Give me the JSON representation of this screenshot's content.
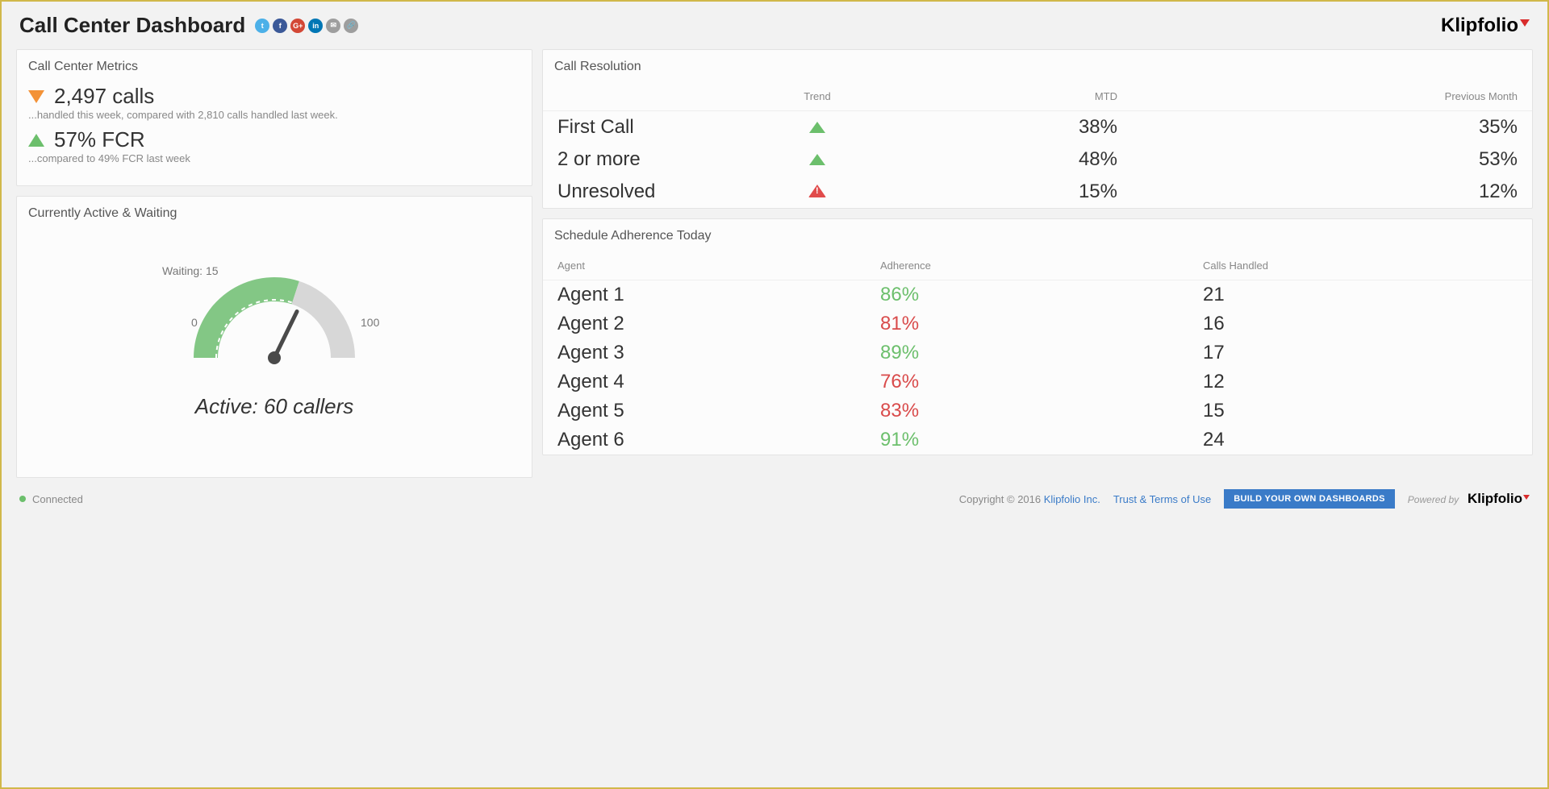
{
  "header": {
    "title": "Call Center Dashboard",
    "brand": "Klipfolio",
    "social_icons": [
      {
        "name": "twitter-icon",
        "bg": "#4cb0e8",
        "glyph": "t"
      },
      {
        "name": "facebook-icon",
        "bg": "#3b5998",
        "glyph": "f"
      },
      {
        "name": "google-plus-icon",
        "bg": "#d34836",
        "glyph": "G+"
      },
      {
        "name": "linkedin-icon",
        "bg": "#0077b5",
        "glyph": "in"
      },
      {
        "name": "email-icon",
        "bg": "#9e9e9e",
        "glyph": "✉"
      },
      {
        "name": "link-icon",
        "bg": "#9e9e9e",
        "glyph": "🔗"
      }
    ]
  },
  "metrics": {
    "panel_title": "Call Center Metrics",
    "calls_value": "2,497 calls",
    "calls_trend": "down",
    "calls_sub": "...handled this week, compared with 2,810 calls handled last week.",
    "fcr_value": "57% FCR",
    "fcr_trend": "up",
    "fcr_sub": "...compared to 49% FCR last week"
  },
  "gauge": {
    "panel_title": "Currently Active & Waiting",
    "waiting_label": "Waiting: 15",
    "min_label": "0",
    "max_label": "100",
    "active_label": "Active: 60 callers",
    "gauge_min": 0,
    "gauge_max": 100,
    "gauge_value": 60,
    "arc_fill_color": "#83c785",
    "arc_bg_color": "#d7d7d7",
    "needle_color": "#4a4a4a"
  },
  "resolution": {
    "panel_title": "Call Resolution",
    "columns": [
      "",
      "Trend",
      "MTD",
      "Previous Month"
    ],
    "rows": [
      {
        "label": "First Call",
        "trend": "up",
        "mtd": "38%",
        "prev": "35%"
      },
      {
        "label": "2 or more",
        "trend": "up",
        "mtd": "48%",
        "prev": "53%"
      },
      {
        "label": "Unresolved",
        "trend": "warn",
        "mtd": "15%",
        "prev": "12%"
      }
    ]
  },
  "adherence": {
    "panel_title": "Schedule Adherence Today",
    "columns": [
      "Agent",
      "Adherence",
      "Calls Handled"
    ],
    "threshold_good": 85,
    "good_color": "#6cbf6c",
    "bad_color": "#d94b4b",
    "rows": [
      {
        "agent": "Agent 1",
        "adherence": "86%",
        "adherence_num": 86,
        "calls": "21"
      },
      {
        "agent": "Agent 2",
        "adherence": "81%",
        "adherence_num": 81,
        "calls": "16"
      },
      {
        "agent": "Agent 3",
        "adherence": "89%",
        "adherence_num": 89,
        "calls": "17"
      },
      {
        "agent": "Agent 4",
        "adherence": "76%",
        "adherence_num": 76,
        "calls": "12"
      },
      {
        "agent": "Agent 5",
        "adherence": "83%",
        "adherence_num": 83,
        "calls": "15"
      },
      {
        "agent": "Agent 6",
        "adherence": "91%",
        "adherence_num": 91,
        "calls": "24"
      }
    ]
  },
  "footer": {
    "status": "Connected",
    "copyright": "Copyright © 2016",
    "company": "Klipfolio Inc.",
    "terms": "Trust & Terms of Use",
    "build_btn": "BUILD YOUR OWN DASHBOARDS",
    "powered_by": "Powered by",
    "brand": "Klipfolio"
  }
}
